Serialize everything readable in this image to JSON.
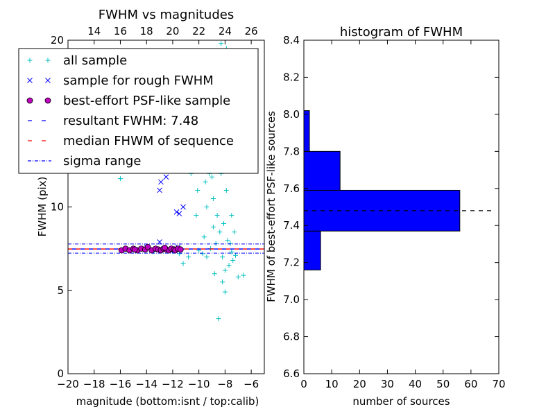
{
  "chart_data": [
    {
      "type": "scatter",
      "title": "FWHM vs magnitudes",
      "xlabel": "magnitude (bottom:isnt / top:calib)",
      "ylabel": "FWHM (pix)",
      "xlim": [
        -20,
        -5
      ],
      "ylim": [
        0,
        20
      ],
      "xticks": [
        -20,
        -18,
        -16,
        -14,
        -12,
        -10,
        -8,
        -6
      ],
      "xtick_labels": [
        "−20",
        "−18",
        "−16",
        "−14",
        "−12",
        "−10",
        "−8",
        "−6"
      ],
      "yticks": [
        0,
        5,
        10,
        15,
        20
      ],
      "ytick_labels": [
        "0",
        "5",
        "10",
        "15",
        "20"
      ],
      "top_xticks": [
        -18,
        -16,
        -14,
        -12,
        -10,
        -8,
        -6
      ],
      "top_xtick_labels": [
        "14",
        "16",
        "18",
        "20",
        "22",
        "24",
        "26"
      ],
      "legend_position": "upper-left",
      "legend": [
        {
          "label": "all sample",
          "marker": "plus",
          "color": "#00bfbf"
        },
        {
          "label": "sample for rough FWHM",
          "marker": "x",
          "color": "#0000ff"
        },
        {
          "label": "best-effort PSF-like sample",
          "marker": "circle",
          "color": "#bf00bf"
        },
        {
          "label": "resultant FWHM: 7.48",
          "linestyle": "dashed",
          "color": "#0000ff"
        },
        {
          "label": "median FHWM of sequence",
          "linestyle": "dashed",
          "color": "#ff0000"
        },
        {
          "label": "sigma range",
          "linestyle": "dashdot",
          "color": "#0000ff"
        }
      ],
      "reference_lines": {
        "resultant_fwhm": 7.48,
        "median_fwhm": 7.48,
        "sigma_range": [
          7.23,
          7.78
        ]
      },
      "series": [
        {
          "name": "all sample",
          "points": [
            [
              -16.0,
              11.7
            ],
            [
              -14.2,
              7.4
            ],
            [
              -13.5,
              7.3
            ],
            [
              -12.8,
              7.5
            ],
            [
              -12.0,
              7.4
            ],
            [
              -11.5,
              7.2
            ],
            [
              -11.2,
              6.6
            ],
            [
              -10.8,
              7.0
            ],
            [
              -10.6,
              12.0
            ],
            [
              -10.5,
              13.5
            ],
            [
              -10.3,
              12.5
            ],
            [
              -10.1,
              11.0
            ],
            [
              -10.0,
              7.4
            ],
            [
              -9.9,
              12.2
            ],
            [
              -9.8,
              14.0
            ],
            [
              -9.7,
              7.2
            ],
            [
              -9.6,
              12.8
            ],
            [
              -9.5,
              11.5
            ],
            [
              -9.4,
              7.0
            ],
            [
              -9.3,
              13.0
            ],
            [
              -9.2,
              12.0
            ],
            [
              -9.1,
              7.5
            ],
            [
              -9.0,
              11.8
            ],
            [
              -8.9,
              10.5
            ],
            [
              -8.8,
              13.5
            ],
            [
              -8.7,
              7.8
            ],
            [
              -8.6,
              9.5
            ],
            [
              -8.5,
              15.0
            ],
            [
              -8.4,
              8.5
            ],
            [
              -8.3,
              12.0
            ],
            [
              -8.2,
              7.0
            ],
            [
              -8.1,
              9.0
            ],
            [
              -8.0,
              6.2
            ],
            [
              -7.9,
              11.0
            ],
            [
              -7.8,
              8.0
            ],
            [
              -7.7,
              6.5
            ],
            [
              -7.6,
              7.8
            ],
            [
              -7.5,
              9.5
            ],
            [
              -7.4,
              6.8
            ],
            [
              -7.3,
              8.5
            ],
            [
              -8.5,
              3.3
            ],
            [
              -8.0,
              4.9
            ],
            [
              -8.2,
              5.5
            ],
            [
              -8.8,
              6.0
            ],
            [
              -7.0,
              5.8
            ],
            [
              -6.6,
              5.9
            ],
            [
              -8.3,
              19.8
            ],
            [
              -7.9,
              19.5
            ],
            [
              -8.1,
              17.0
            ],
            [
              -8.6,
              16.5
            ],
            [
              -7.8,
              16.0
            ],
            [
              -9.0,
              15.5
            ],
            [
              -8.4,
              14.5
            ],
            [
              -7.6,
              13.0
            ],
            [
              -9.4,
              10.0
            ],
            [
              -10.2,
              9.5
            ],
            [
              -8.9,
              8.8
            ],
            [
              -9.6,
              8.2
            ],
            [
              -7.5,
              7.3
            ],
            [
              -7.2,
              7.1
            ]
          ]
        },
        {
          "name": "sample for rough FWHM",
          "points": [
            [
              -12.5,
              11.8
            ],
            [
              -12.9,
              11.5
            ],
            [
              -13.0,
              11.0
            ],
            [
              -11.7,
              9.7
            ],
            [
              -11.5,
              9.6
            ],
            [
              -11.2,
              10.0
            ],
            [
              -13.0,
              7.9
            ],
            [
              -14.0,
              7.6
            ],
            [
              -12.2,
              7.4
            ],
            [
              -11.6,
              7.6
            ]
          ]
        },
        {
          "name": "best-effort PSF-like sample",
          "points": [
            [
              -15.9,
              7.4
            ],
            [
              -15.6,
              7.5
            ],
            [
              -15.3,
              7.4
            ],
            [
              -15.0,
              7.5
            ],
            [
              -14.7,
              7.4
            ],
            [
              -14.4,
              7.5
            ],
            [
              -14.1,
              7.45
            ],
            [
              -13.9,
              7.6
            ],
            [
              -13.6,
              7.4
            ],
            [
              -13.3,
              7.5
            ],
            [
              -13.1,
              7.45
            ],
            [
              -12.9,
              7.4
            ],
            [
              -12.7,
              7.5
            ],
            [
              -12.5,
              7.45
            ],
            [
              -12.3,
              7.4
            ],
            [
              -12.1,
              7.5
            ],
            [
              -11.9,
              7.45
            ],
            [
              -11.8,
              7.4
            ],
            [
              -11.6,
              7.5
            ],
            [
              -11.4,
              7.45
            ],
            [
              -12.6,
              7.55
            ],
            [
              -14.9,
              7.45
            ]
          ]
        }
      ]
    },
    {
      "type": "bar",
      "orientation": "horizontal",
      "title": "histogram of FWHM",
      "xlabel": "number of sources",
      "ylabel": "FWHM of best-effort PSF-like sources",
      "xlim": [
        0,
        70
      ],
      "ylim": [
        6.6,
        8.4
      ],
      "xticks": [
        0,
        10,
        20,
        30,
        40,
        50,
        60,
        70
      ],
      "xtick_labels": [
        "0",
        "10",
        "20",
        "30",
        "40",
        "50",
        "60",
        "70"
      ],
      "yticks": [
        6.6,
        6.8,
        7.0,
        7.2,
        7.4,
        7.6,
        7.8,
        8.0,
        8.2,
        8.4
      ],
      "ytick_labels": [
        "6.6",
        "6.8",
        "7.0",
        "7.2",
        "7.4",
        "7.6",
        "7.8",
        "8.0",
        "8.2",
        "8.4"
      ],
      "bar_color": "#0000ff",
      "bins": [
        {
          "low": 7.16,
          "high": 7.37,
          "count": 6
        },
        {
          "low": 7.37,
          "high": 7.59,
          "count": 56
        },
        {
          "low": 7.59,
          "high": 7.8,
          "count": 13
        },
        {
          "low": 7.8,
          "high": 8.02,
          "count": 2
        }
      ],
      "reference_line": {
        "value": 7.48,
        "linestyle": "dashed",
        "color": "#000000"
      }
    }
  ]
}
